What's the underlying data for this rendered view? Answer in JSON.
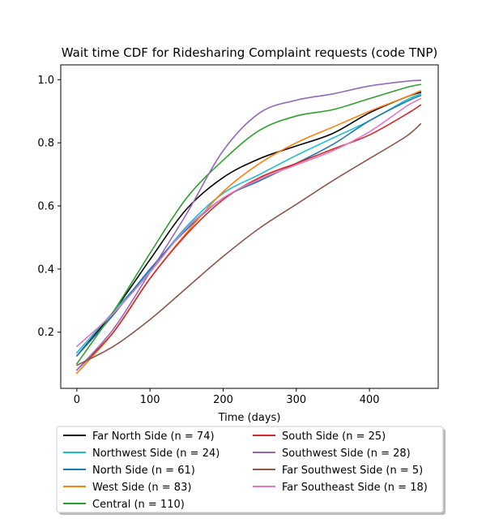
{
  "chart_data": {
    "type": "line",
    "title": "Wait time CDF for Ridesharing Complaint  requests (code TNP)",
    "xlabel": "Time (days)",
    "ylabel": "",
    "xlim": [
      -22,
      494
    ],
    "ylim": [
      0.022,
      1.047
    ],
    "xticks": [
      0,
      100,
      200,
      300,
      400
    ],
    "yticks": [
      0.2,
      0.4,
      0.6,
      0.8,
      1.0
    ],
    "ytick_labels": [
      "0.2",
      "0.4",
      "0.6",
      "0.8",
      "1.0"
    ],
    "grid": false,
    "legend": {
      "placement": "bottom-center, outside",
      "columns": 2
    },
    "x": [
      0,
      50,
      100,
      150,
      200,
      250,
      300,
      350,
      400,
      450,
      470
    ],
    "series": [
      {
        "name": "Far North Side (n = 74)",
        "color": "#000000",
        "values": [
          0.125,
          0.265,
          0.43,
          0.59,
          0.69,
          0.75,
          0.79,
          0.83,
          0.895,
          0.945,
          0.96
        ]
      },
      {
        "name": "Northwest Side (n = 24)",
        "color": "#17becf",
        "values": [
          0.135,
          0.265,
          0.395,
          0.535,
          0.64,
          0.7,
          0.76,
          0.815,
          0.87,
          0.935,
          0.955
        ]
      },
      {
        "name": "North Side (n = 61)",
        "color": "#1f77b4",
        "values": [
          0.125,
          0.255,
          0.4,
          0.525,
          0.625,
          0.68,
          0.735,
          0.795,
          0.87,
          0.93,
          0.95
        ]
      },
      {
        "name": "West Side (n = 83)",
        "color": "#ff7f0e",
        "values": [
          0.07,
          0.2,
          0.37,
          0.515,
          0.645,
          0.735,
          0.8,
          0.85,
          0.9,
          0.945,
          0.965
        ]
      },
      {
        "name": "Central (n = 110)",
        "color": "#2ca02c",
        "values": [
          0.1,
          0.265,
          0.45,
          0.625,
          0.745,
          0.84,
          0.885,
          0.905,
          0.94,
          0.975,
          0.985
        ]
      },
      {
        "name": "South Side (n = 25)",
        "color": "#d62728",
        "values": [
          0.08,
          0.2,
          0.37,
          0.51,
          0.62,
          0.69,
          0.735,
          0.78,
          0.825,
          0.89,
          0.92
        ]
      },
      {
        "name": "Southwest Side (n = 28)",
        "color": "#9467bd",
        "values": [
          0.08,
          0.21,
          0.39,
          0.575,
          0.775,
          0.895,
          0.935,
          0.955,
          0.98,
          0.995,
          0.998
        ]
      },
      {
        "name": "Far Southwest Side (n = 5)",
        "color": "#8c564b",
        "values": [
          0.095,
          0.155,
          0.24,
          0.34,
          0.44,
          0.53,
          0.605,
          0.68,
          0.75,
          0.82,
          0.86
        ]
      },
      {
        "name": "Far Southeast Side (n = 18)",
        "color": "#e377c2",
        "values": [
          0.155,
          0.26,
          0.39,
          0.53,
          0.625,
          0.685,
          0.73,
          0.775,
          0.835,
          0.915,
          0.94
        ]
      }
    ]
  }
}
